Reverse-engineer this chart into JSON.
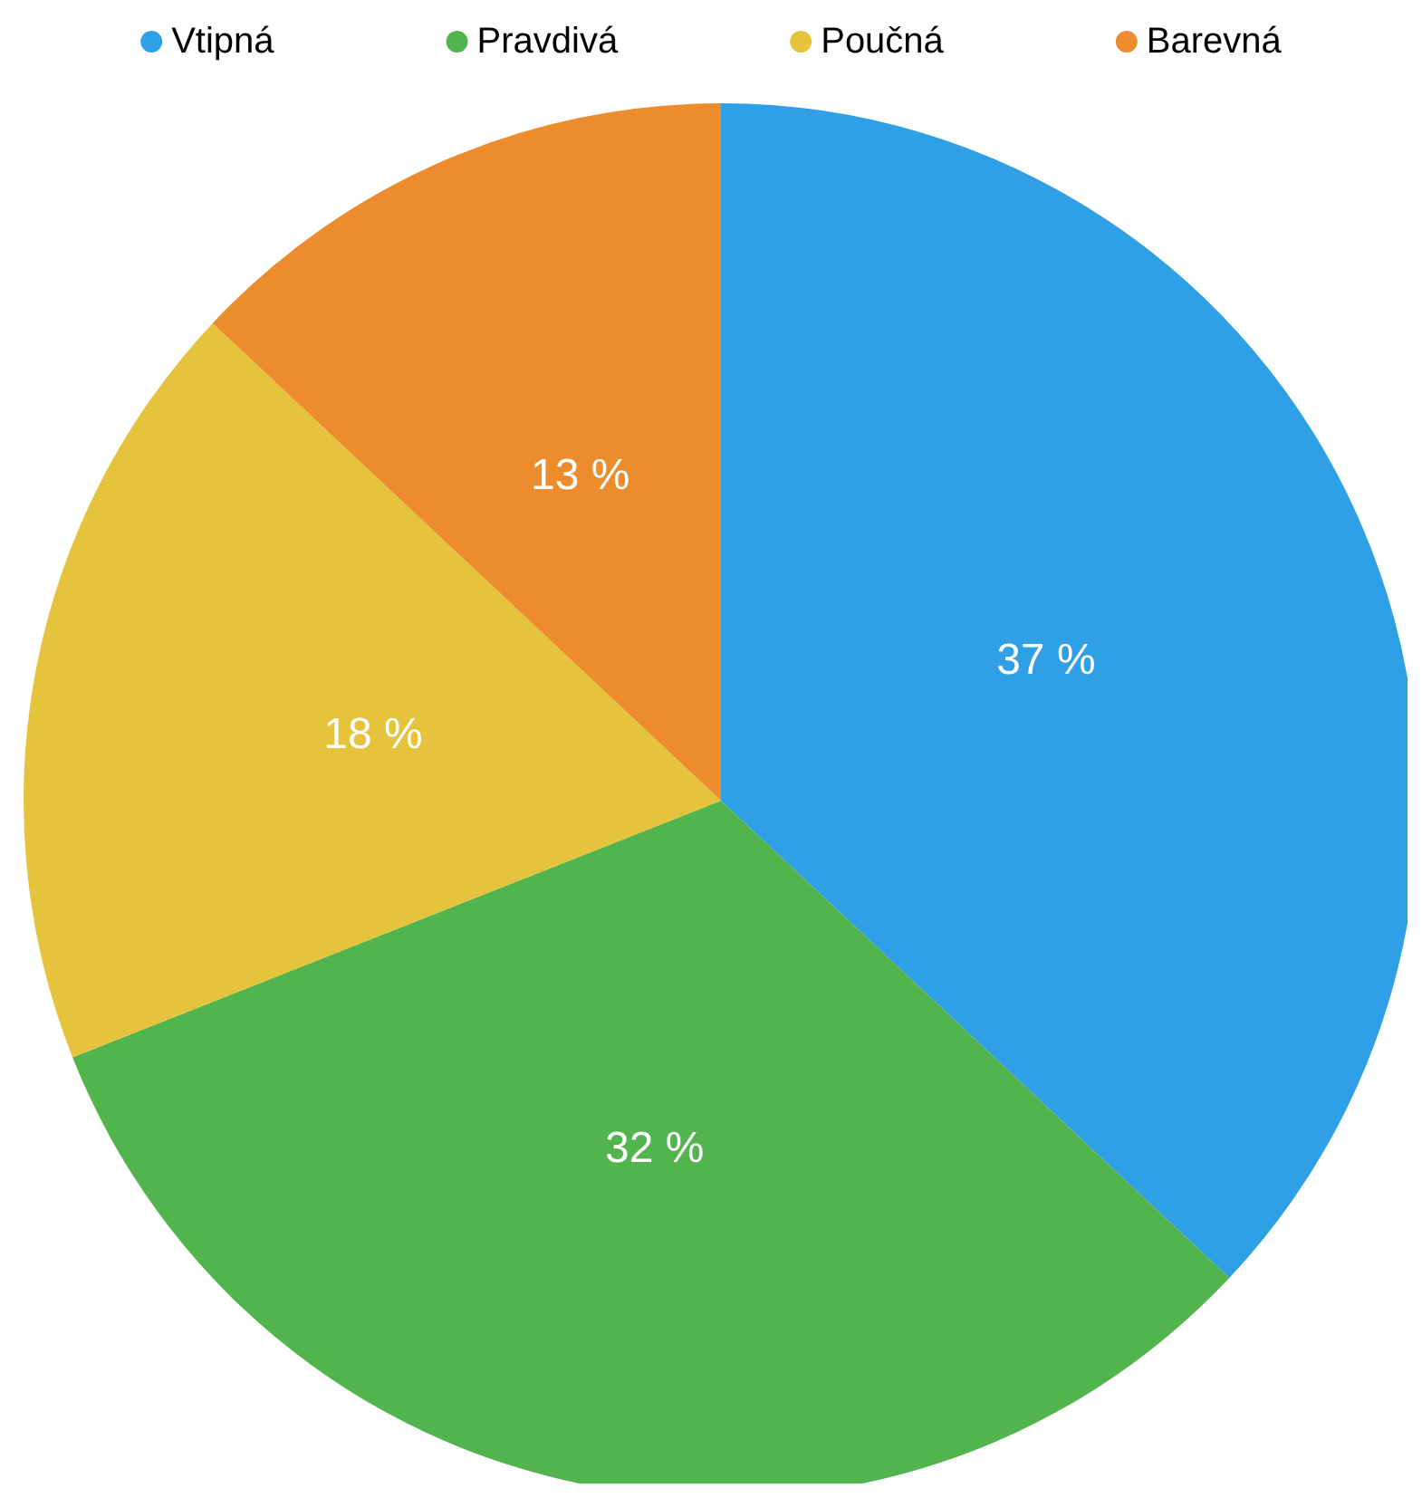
{
  "chart_data": {
    "type": "pie",
    "categories": [
      "Vtipná",
      "Pravdivá",
      "Poučná",
      "Barevná"
    ],
    "values": [
      37,
      32,
      18,
      13
    ],
    "colors": [
      "#2f9fe6",
      "#52b44c",
      "#e6c33c",
      "#ec8c2c"
    ],
    "value_labels": [
      "37 %",
      "32 %",
      "18 %",
      "13 %"
    ],
    "legend": "top"
  }
}
